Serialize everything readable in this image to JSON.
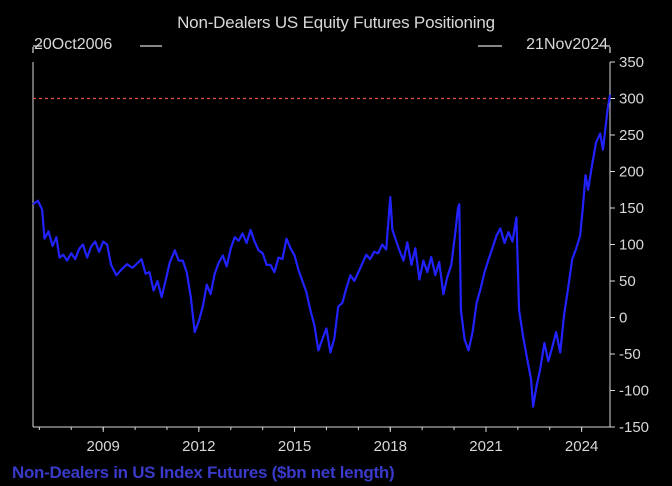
{
  "chart_data": {
    "type": "line",
    "title": "Non-Dealers US Equity Futures Positioning",
    "ylabel": "Non-Dealers in US Index Futures ($bn net length)",
    "start_label": "20Oct2006",
    "end_label": "21Nov2024",
    "x_ticks": [
      "2009",
      "2012",
      "2015",
      "2018",
      "2021",
      "2024"
    ],
    "y_ticks": [
      350,
      300,
      250,
      200,
      150,
      100,
      50,
      0,
      -50,
      -100,
      -150
    ],
    "ylim": [
      -150,
      350
    ],
    "xlim": [
      "2006-10-20",
      "2024-11-21"
    ],
    "reference_line": 300,
    "grid": false,
    "colors": {
      "line": "#2222ff",
      "reference": "#e05050",
      "axis": "#d8d8d8"
    },
    "series": [
      {
        "values": [
          [
            "2006-10-20",
            155
          ],
          [
            "2006-12-15",
            160
          ],
          [
            "2007-02-01",
            148
          ],
          [
            "2007-03-01",
            108
          ],
          [
            "2007-04-15",
            118
          ],
          [
            "2007-06-01",
            98
          ],
          [
            "2007-07-15",
            110
          ],
          [
            "2007-08-20",
            82
          ],
          [
            "2007-10-01",
            86
          ],
          [
            "2007-11-15",
            78
          ],
          [
            "2008-01-01",
            88
          ],
          [
            "2008-02-15",
            80
          ],
          [
            "2008-04-01",
            94
          ],
          [
            "2008-05-15",
            100
          ],
          [
            "2008-07-01",
            82
          ],
          [
            "2008-08-15",
            97
          ],
          [
            "2008-10-01",
            104
          ],
          [
            "2008-11-15",
            90
          ],
          [
            "2009-01-01",
            104
          ],
          [
            "2009-02-15",
            100
          ],
          [
            "2009-04-01",
            72
          ],
          [
            "2009-06-01",
            58
          ],
          [
            "2009-08-01",
            66
          ],
          [
            "2009-10-01",
            73
          ],
          [
            "2009-12-01",
            68
          ],
          [
            "2010-02-01",
            75
          ],
          [
            "2010-03-15",
            80
          ],
          [
            "2010-05-01",
            60
          ],
          [
            "2010-06-15",
            62
          ],
          [
            "2010-08-01",
            37
          ],
          [
            "2010-09-15",
            50
          ],
          [
            "2010-11-01",
            28
          ],
          [
            "2010-12-15",
            50
          ],
          [
            "2011-02-01",
            75
          ],
          [
            "2011-04-01",
            92
          ],
          [
            "2011-05-15",
            78
          ],
          [
            "2011-07-01",
            78
          ],
          [
            "2011-08-15",
            62
          ],
          [
            "2011-10-01",
            28
          ],
          [
            "2011-11-15",
            -20
          ],
          [
            "2012-01-01",
            -5
          ],
          [
            "2012-02-15",
            15
          ],
          [
            "2012-04-01",
            45
          ],
          [
            "2012-05-15",
            32
          ],
          [
            "2012-07-01",
            60
          ],
          [
            "2012-08-15",
            75
          ],
          [
            "2012-10-01",
            85
          ],
          [
            "2012-11-15",
            70
          ],
          [
            "2013-01-01",
            95
          ],
          [
            "2013-02-15",
            110
          ],
          [
            "2013-04-01",
            105
          ],
          [
            "2013-05-15",
            115
          ],
          [
            "2013-07-01",
            102
          ],
          [
            "2013-08-15",
            120
          ],
          [
            "2013-10-01",
            104
          ],
          [
            "2013-11-15",
            92
          ],
          [
            "2014-01-01",
            88
          ],
          [
            "2014-02-15",
            72
          ],
          [
            "2014-04-01",
            72
          ],
          [
            "2014-05-15",
            62
          ],
          [
            "2014-07-01",
            82
          ],
          [
            "2014-08-15",
            80
          ],
          [
            "2014-10-01",
            108
          ],
          [
            "2014-11-15",
            95
          ],
          [
            "2015-01-01",
            85
          ],
          [
            "2015-02-15",
            65
          ],
          [
            "2015-04-01",
            50
          ],
          [
            "2015-05-15",
            35
          ],
          [
            "2015-07-01",
            10
          ],
          [
            "2015-08-15",
            -10
          ],
          [
            "2015-10-01",
            -45
          ],
          [
            "2015-11-15",
            -30
          ],
          [
            "2016-01-01",
            -15
          ],
          [
            "2016-02-15",
            -48
          ],
          [
            "2016-04-01",
            -28
          ],
          [
            "2016-05-15",
            15
          ],
          [
            "2016-07-01",
            20
          ],
          [
            "2016-08-15",
            40
          ],
          [
            "2016-10-01",
            58
          ],
          [
            "2016-11-15",
            50
          ],
          [
            "2017-01-01",
            62
          ],
          [
            "2017-02-15",
            74
          ],
          [
            "2017-04-01",
            86
          ],
          [
            "2017-05-15",
            80
          ],
          [
            "2017-07-01",
            90
          ],
          [
            "2017-08-15",
            88
          ],
          [
            "2017-10-01",
            100
          ],
          [
            "2017-11-15",
            93
          ],
          [
            "2018-01-01",
            165
          ],
          [
            "2018-01-25",
            120
          ],
          [
            "2018-03-01",
            108
          ],
          [
            "2018-04-15",
            92
          ],
          [
            "2018-06-01",
            78
          ],
          [
            "2018-07-15",
            103
          ],
          [
            "2018-09-01",
            72
          ],
          [
            "2018-10-15",
            95
          ],
          [
            "2018-12-01",
            52
          ],
          [
            "2019-01-15",
            78
          ],
          [
            "2019-03-01",
            62
          ],
          [
            "2019-04-15",
            83
          ],
          [
            "2019-06-01",
            58
          ],
          [
            "2019-07-15",
            76
          ],
          [
            "2019-09-01",
            32
          ],
          [
            "2019-10-15",
            55
          ],
          [
            "2019-12-01",
            72
          ],
          [
            "2020-01-15",
            115
          ],
          [
            "2020-02-15",
            150
          ],
          [
            "2020-03-01",
            155
          ],
          [
            "2020-03-20",
            10
          ],
          [
            "2020-05-01",
            -30
          ],
          [
            "2020-06-15",
            -45
          ],
          [
            "2020-08-01",
            -20
          ],
          [
            "2020-09-15",
            20
          ],
          [
            "2020-11-01",
            40
          ],
          [
            "2020-12-15",
            62
          ],
          [
            "2021-02-01",
            80
          ],
          [
            "2021-03-15",
            95
          ],
          [
            "2021-05-01",
            112
          ],
          [
            "2021-06-15",
            122
          ],
          [
            "2021-08-01",
            102
          ],
          [
            "2021-09-15",
            117
          ],
          [
            "2021-11-01",
            104
          ],
          [
            "2021-12-15",
            137
          ],
          [
            "2022-01-15",
            10
          ],
          [
            "2022-03-01",
            -25
          ],
          [
            "2022-04-15",
            -55
          ],
          [
            "2022-06-01",
            -85
          ],
          [
            "2022-06-25",
            -122
          ],
          [
            "2022-08-01",
            -95
          ],
          [
            "2022-09-15",
            -70
          ],
          [
            "2022-11-01",
            -35
          ],
          [
            "2022-12-15",
            -60
          ],
          [
            "2023-02-01",
            -40
          ],
          [
            "2023-03-15",
            -20
          ],
          [
            "2023-05-01",
            -48
          ],
          [
            "2023-06-15",
            5
          ],
          [
            "2023-08-01",
            42
          ],
          [
            "2023-09-15",
            80
          ],
          [
            "2023-11-01",
            95
          ],
          [
            "2023-12-15",
            112
          ],
          [
            "2024-01-15",
            150
          ],
          [
            "2024-02-15",
            195
          ],
          [
            "2024-03-15",
            175
          ],
          [
            "2024-05-01",
            210
          ],
          [
            "2024-06-15",
            240
          ],
          [
            "2024-08-01",
            252
          ],
          [
            "2024-09-01",
            230
          ],
          [
            "2024-10-01",
            260
          ],
          [
            "2024-10-25",
            285
          ],
          [
            "2024-11-21",
            305
          ]
        ]
      }
    ]
  }
}
